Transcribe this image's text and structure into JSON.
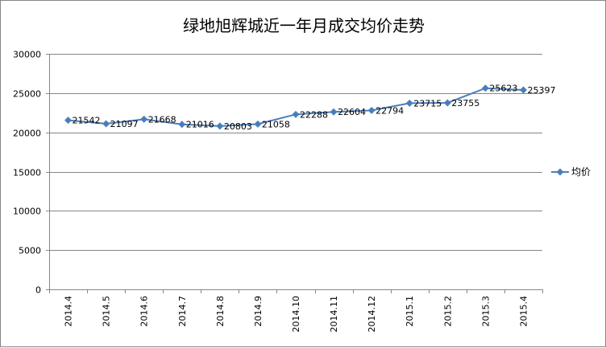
{
  "chart_data": {
    "type": "line",
    "title": "绿地旭辉城近一年月成交均价走势",
    "categories": [
      "2014.4",
      "2014.5",
      "2014.6",
      "2014.7",
      "2014.8",
      "2014.9",
      "2014.10",
      "2014.11",
      "2014.12",
      "2015.1",
      "2015.2",
      "2015.3",
      "2015.4"
    ],
    "series": [
      {
        "name": "均价",
        "values": [
          21542,
          21097,
          21668,
          21016,
          20803,
          21058,
          22288,
          22604,
          22794,
          23715,
          23755,
          25623,
          25397
        ],
        "color": "#4a7ebb",
        "marker": "diamond",
        "data_labels": true
      }
    ],
    "ylim": [
      0,
      30000
    ],
    "yticks": [
      0,
      5000,
      10000,
      15000,
      20000,
      25000,
      30000
    ],
    "xlabel": "",
    "ylabel": "",
    "grid": "horizontal",
    "legend": "right"
  }
}
